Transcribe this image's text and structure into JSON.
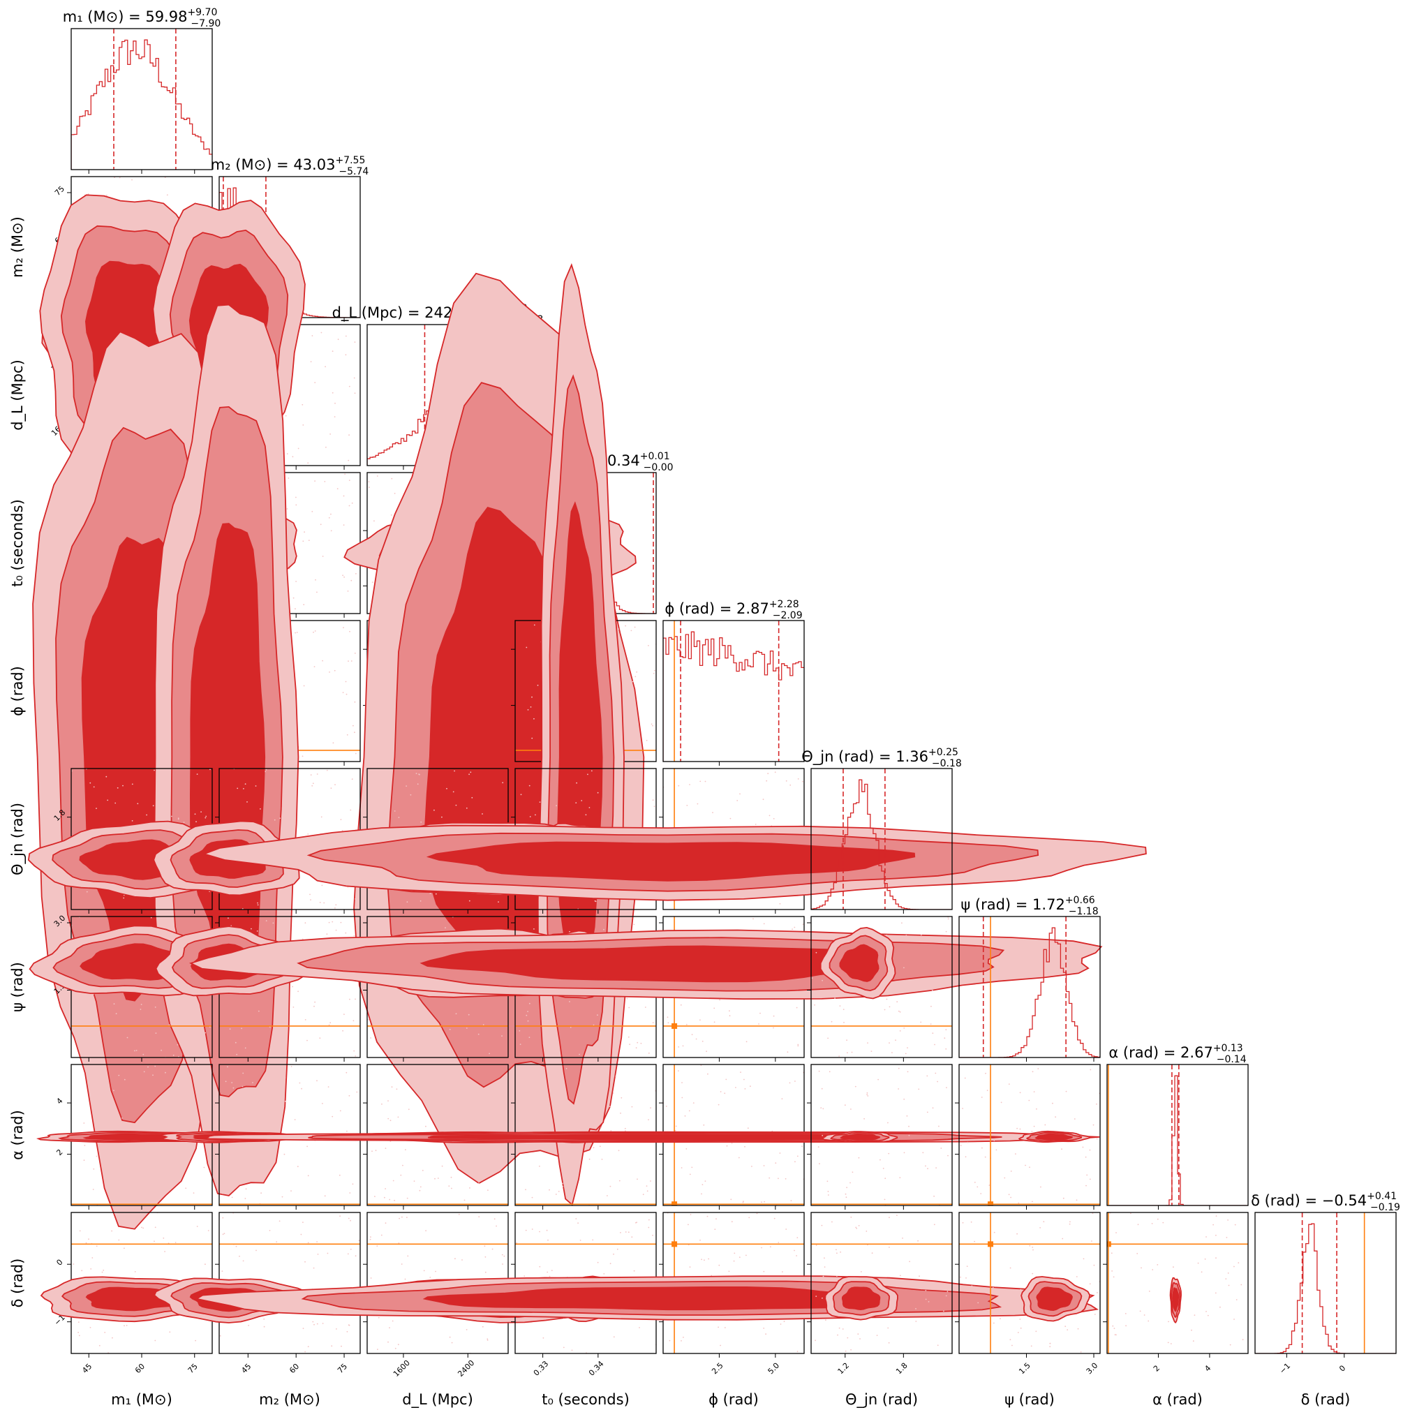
{
  "chart_data": {
    "type": "corner",
    "colors": {
      "posterior": "#d62728",
      "posterior_mid": "#e8898a",
      "posterior_light": "#f3c4c4",
      "truth": "#ff7f0e"
    },
    "parameters": [
      {
        "id": "m1",
        "axis_label": "m₁ (M⊙)",
        "title_text": "m₁ (M⊙) = 59.98",
        "median": 59.98,
        "plus": "+9.70",
        "minus": "−7.90",
        "range": [
          40,
          80
        ],
        "ticks": [
          "45",
          "60",
          "75"
        ],
        "tick_values": [
          45,
          60,
          75
        ],
        "mode": 58,
        "spread": 11,
        "truth": null
      },
      {
        "id": "m2",
        "axis_label": "m₂ (M⊙)",
        "title_text": "m₂ (M⊙) = 43.03",
        "median": 43.03,
        "plus": "+7.55",
        "minus": "−5.74",
        "range": [
          36,
          80
        ],
        "ticks": [
          "45",
          "60",
          "75"
        ],
        "tick_values": [
          45,
          60,
          75
        ],
        "mode": 39,
        "spread": 9,
        "truth": null
      },
      {
        "id": "dL",
        "axis_label": "d_L (Mpc)",
        "title_text": "d_L (Mpc) = 2428.24",
        "median": 2428.24,
        "plus": "+391.83",
        "minus": "−563.93",
        "range": [
          1150,
          2900
        ],
        "ticks": [
          "1600",
          "2400"
        ],
        "tick_values": [
          1600,
          2400
        ],
        "mode": 2800,
        "spread": 700,
        "truth": null
      },
      {
        "id": "t0",
        "axis_label": "t₀ (seconds)",
        "title_text": "t₀ (seconds) = 0.34",
        "median": 0.34,
        "plus": "+0.01",
        "minus": "−0.00",
        "range": [
          0.325,
          0.3505
        ],
        "ticks": [
          "0.33",
          "0.34"
        ],
        "tick_values": [
          0.33,
          0.34
        ],
        "mode": 0.3365,
        "spread": 0.003,
        "truth": null
      },
      {
        "id": "phi",
        "axis_label": "ϕ (rad)",
        "title_text": "ϕ (rad) = 2.87",
        "median": 2.87,
        "plus": "+2.28",
        "minus": "−2.09",
        "range": [
          0,
          6.28
        ],
        "ticks": [
          "2.5",
          "5.0"
        ],
        "tick_values": [
          2.5,
          5.0
        ],
        "mode": 0.2,
        "spread": 8,
        "truth": 0.5
      },
      {
        "id": "theta_jn",
        "axis_label": "Θ_jn (rad)",
        "title_text": "Θ_jn (rad) = 1.36",
        "median": 1.36,
        "plus": "+0.25",
        "minus": "−0.18",
        "range": [
          0.85,
          2.3
        ],
        "ticks": [
          "1.2",
          "1.8"
        ],
        "tick_values": [
          1.2,
          1.8
        ],
        "mode": 1.36,
        "spread": 0.15,
        "truth": null
      },
      {
        "id": "psi",
        "axis_label": "ψ (rad)",
        "title_text": "ψ (rad) = 1.72",
        "median": 1.72,
        "plus": "+0.66",
        "minus": "−1.18",
        "range": [
          0,
          3.14
        ],
        "ticks": [
          "1.5",
          "3.0"
        ],
        "tick_values": [
          1.5,
          3.0
        ],
        "mode": 2.1,
        "spread": 0.3,
        "truth": 0.7
      },
      {
        "id": "alpha",
        "axis_label": "α (rad)",
        "title_text": "α (rad) = 2.67",
        "median": 2.67,
        "plus": "+0.13",
        "minus": "−0.14",
        "range": [
          0,
          5.5
        ],
        "ticks": [
          "2",
          "4"
        ],
        "tick_values": [
          2,
          4
        ],
        "mode": 2.67,
        "spread": 0.08,
        "truth": 0.05
      },
      {
        "id": "delta",
        "axis_label": "δ (rad)",
        "title_text": "δ (rad) = −0.54",
        "median": -0.54,
        "plus": "+0.41",
        "minus": "−0.19",
        "range": [
          -1.55,
          0.9
        ],
        "ticks": [
          "−1",
          "0"
        ],
        "tick_values": [
          -1,
          0
        ],
        "mode": -0.6,
        "spread": 0.15,
        "truth": 0.35
      }
    ]
  }
}
